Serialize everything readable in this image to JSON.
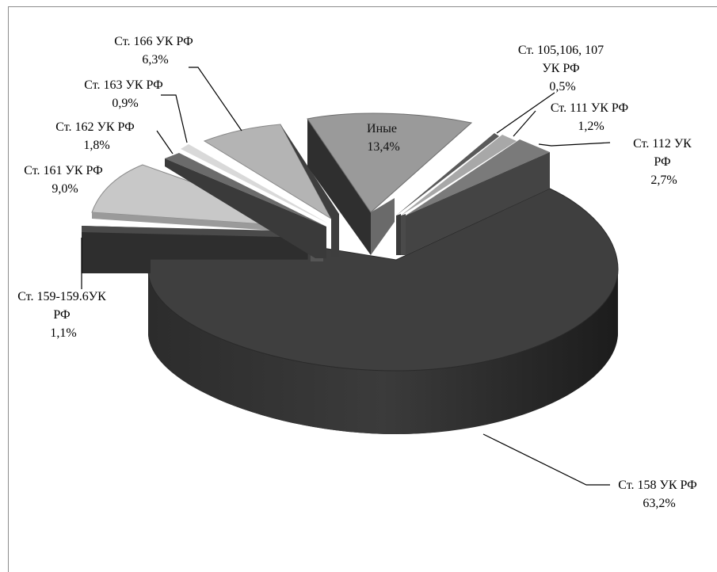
{
  "chart_data": {
    "type": "pie",
    "style": "3d-exploded",
    "title": "",
    "slices": [
      {
        "label": "Ст. 158 УК РФ",
        "value": 63.2,
        "value_text": "63,2%",
        "color": "#3f3f3f"
      },
      {
        "label": "Ст. 159-159.6УК РФ",
        "value": 1.1,
        "value_text": "1,1%",
        "color": "#4a4a4a"
      },
      {
        "label": "Ст. 161 УК РФ",
        "value": 9.0,
        "value_text": "9,0%",
        "color": "#c8c8c8"
      },
      {
        "label": "Ст. 162 УК РФ",
        "value": 1.8,
        "value_text": "1,8%",
        "color": "#6b6b6b"
      },
      {
        "label": "Ст. 163 УК РФ",
        "value": 0.9,
        "value_text": "0,9%",
        "color": "#d9d9d9"
      },
      {
        "label": "Ст. 166 УК РФ",
        "value": 6.3,
        "value_text": "6,3%",
        "color": "#b4b4b4"
      },
      {
        "label": "Иные",
        "value": 13.4,
        "value_text": "13,4%",
        "color": "#9a9a9a"
      },
      {
        "label": "Ст. 105,106, 107 УК РФ",
        "value": 0.5,
        "value_text": "0,5%",
        "color": "#5a5a5a"
      },
      {
        "label": "Ст. 111 УК РФ",
        "value": 1.2,
        "value_text": "1,2%",
        "color": "#a8a8a8"
      },
      {
        "label": "Ст. 112 УК РФ",
        "value": 2.7,
        "value_text": "2,7%",
        "color": "#7a7a7a"
      }
    ]
  },
  "labels": {
    "s158": {
      "line1": "Ст. 158 УК РФ",
      "line2": "63,2%"
    },
    "s159": {
      "line1": "Ст. 159-159.6УК",
      "line2": "РФ",
      "line3": "1,1%"
    },
    "s161": {
      "line1": "Ст. 161 УК РФ",
      "line2": "9,0%"
    },
    "s162": {
      "line1": "Ст. 162 УК РФ",
      "line2": "1,8%"
    },
    "s163": {
      "line1": "Ст. 163 УК РФ",
      "line2": "0,9%"
    },
    "s166": {
      "line1": "Ст. 166 УК РФ",
      "line2": "6,3%"
    },
    "other": {
      "line1": "Иные",
      "line2": "13,4%"
    },
    "s105": {
      "line1": "Ст. 105,106, 107",
      "line2": "УК РФ",
      "line3": "0,5%"
    },
    "s111": {
      "line1": "Ст. 111 УК РФ",
      "line2": "1,2%"
    },
    "s112": {
      "line1": "Ст. 112 УК",
      "line2": "РФ",
      "line3": "2,7%"
    }
  }
}
